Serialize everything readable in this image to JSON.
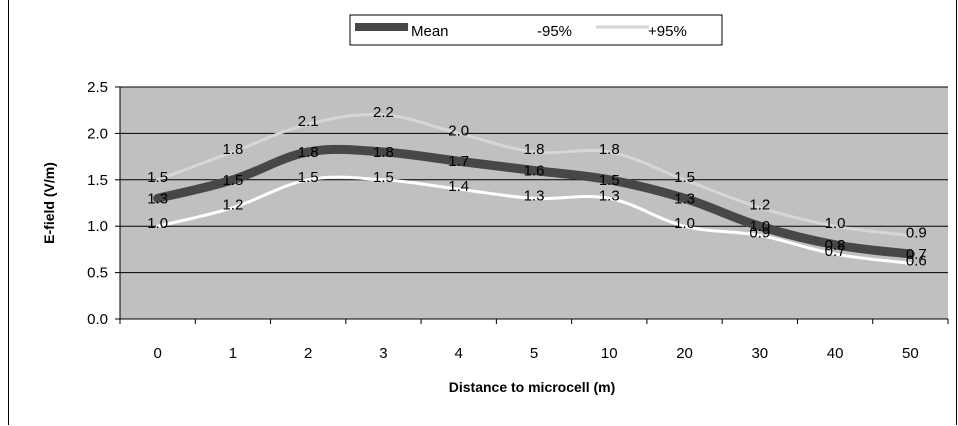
{
  "chart_data": {
    "type": "line",
    "title": "",
    "xlabel": "Distance to microcell  (m)",
    "ylabel": "E-field  (V/m)",
    "categories": [
      "0",
      "1",
      "2",
      "3",
      "4",
      "5",
      "10",
      "20",
      "30",
      "40",
      "50"
    ],
    "ylim": [
      0,
      2.5
    ],
    "yticks": [
      "0.0",
      "0.5",
      "1.0",
      "1.5",
      "2.0",
      "2.5"
    ],
    "grid": true,
    "legend_position": "top-center",
    "series": [
      {
        "name": "Mean",
        "values": [
          1.3,
          1.5,
          1.8,
          1.8,
          1.7,
          1.6,
          1.5,
          1.3,
          1.0,
          0.8,
          0.7
        ],
        "labels": [
          "1.3",
          "1.5",
          "1.8",
          "1.8",
          "1.7",
          "1.6",
          "1.5",
          "1.3",
          "1.0",
          "0.8",
          "0.7"
        ],
        "color": "#474747"
      },
      {
        "name": "-95%",
        "values": [
          1.0,
          1.2,
          1.5,
          1.5,
          1.4,
          1.3,
          1.3,
          1.0,
          0.9,
          0.7,
          0.6
        ],
        "labels": [
          "1.0",
          "1.2",
          "1.5",
          "1.5",
          "1.4",
          "1.3",
          "1.3",
          "1.0",
          "0.9",
          "0.7",
          "0.6"
        ],
        "color": "#ffffff"
      },
      {
        "name": "+95%",
        "values": [
          1.5,
          1.8,
          2.1,
          2.2,
          2.0,
          1.8,
          1.8,
          1.5,
          1.2,
          1.0,
          0.9
        ],
        "labels": [
          "1.5",
          "1.8",
          "2.1",
          "2.2",
          "2.0",
          "1.8",
          "1.8",
          "1.5",
          "1.2",
          "1.0",
          "0.9"
        ],
        "color": "#d6d6d6"
      }
    ],
    "colors": {
      "plot_background": "#c0c0c0",
      "gridline": "#000000"
    }
  }
}
